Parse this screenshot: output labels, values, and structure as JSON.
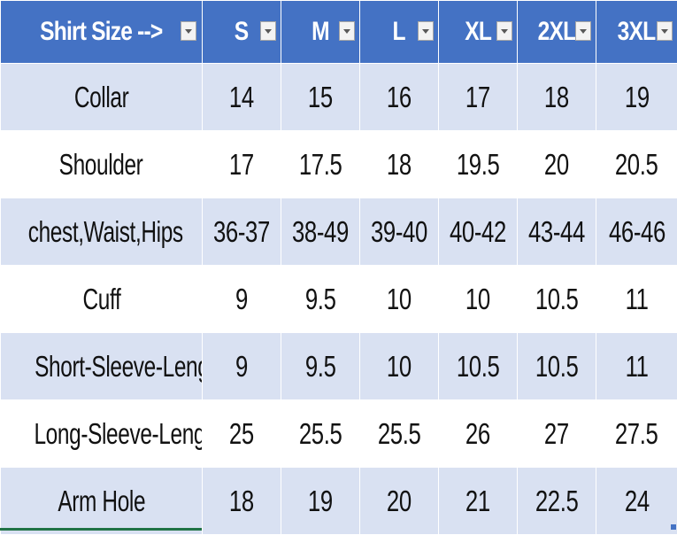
{
  "table": {
    "headers": [
      {
        "label": "Shirt Size -->",
        "name": "header-shirt-size"
      },
      {
        "label": "S",
        "name": "header-s"
      },
      {
        "label": "M",
        "name": "header-m"
      },
      {
        "label": "L",
        "name": "header-l"
      },
      {
        "label": "XL",
        "name": "header-xl"
      },
      {
        "label": "2XL",
        "name": "header-2xl"
      },
      {
        "label": "3XL",
        "name": "header-3xl"
      }
    ],
    "rows": [
      {
        "label": "Collar",
        "values": [
          "14",
          "15",
          "16",
          "17",
          "18",
          "19"
        ]
      },
      {
        "label": "Shoulder",
        "values": [
          "17",
          "17.5",
          "18",
          "19.5",
          "20",
          "20.5"
        ]
      },
      {
        "label": "chest,Waist,Hips",
        "values": [
          "36-37",
          "38-49",
          "39-40",
          "40-42",
          "43-44",
          "46-46"
        ]
      },
      {
        "label": "Cuff",
        "values": [
          "9",
          "9.5",
          "10",
          "10",
          "10.5",
          "11"
        ]
      },
      {
        "label": "Short-Sleeve-Length",
        "values": [
          "9",
          "9.5",
          "10",
          "10.5",
          "10.5",
          "11"
        ]
      },
      {
        "label": "Long-Sleeve-Length",
        "values": [
          "25",
          "25.5",
          "25.5",
          "26",
          "27",
          "27.5"
        ]
      },
      {
        "label": "Arm Hole",
        "values": [
          "18",
          "19",
          "20",
          "21",
          "22.5",
          "24"
        ]
      }
    ]
  },
  "colors": {
    "header_bg": "#4472c4",
    "band_bg": "#d9e1f2",
    "selection": "#217346"
  },
  "icons": {
    "filter": "filter-dropdown-icon"
  }
}
